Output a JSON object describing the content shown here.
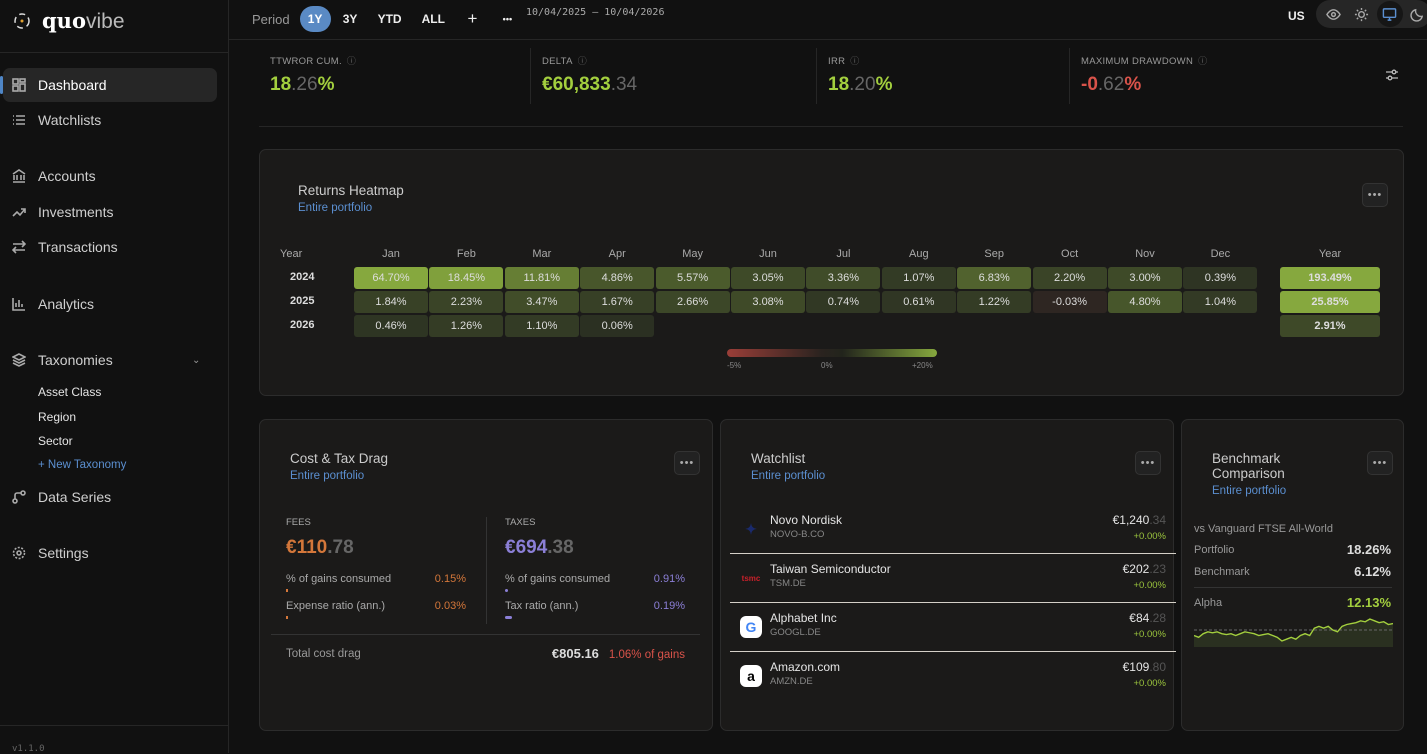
{
  "app": {
    "name_bold": "quo",
    "name_light": "vibe",
    "version": "v1.1.0"
  },
  "sidebar": {
    "items": [
      {
        "label": "Dashboard",
        "icon": "dashboard-icon"
      },
      {
        "label": "Watchlists",
        "icon": "list-icon"
      },
      {
        "label": "Accounts",
        "icon": "bank-icon"
      },
      {
        "label": "Investments",
        "icon": "trend-icon"
      },
      {
        "label": "Transactions",
        "icon": "arrows-icon"
      },
      {
        "label": "Analytics",
        "icon": "bar-chart-icon"
      },
      {
        "label": "Taxonomies",
        "icon": "layers-icon"
      },
      {
        "label": "Data Series",
        "icon": "series-icon"
      },
      {
        "label": "Settings",
        "icon": "gear-icon"
      }
    ],
    "taxonomies": [
      "Asset Class",
      "Region",
      "Sector"
    ],
    "new_taxonomy": "+ New Taxonomy"
  },
  "topbar": {
    "period_label": "Period",
    "periods": [
      "1Y",
      "3Y",
      "YTD",
      "ALL"
    ],
    "active_period": "1Y",
    "add": "+",
    "more": "•••",
    "date_range": "10/04/2025 – 10/04/2026",
    "locale": "US"
  },
  "kpis": [
    {
      "label": "TTWROR CUM.",
      "main": "18",
      "frac": ".26",
      "suffix": "%",
      "color": "#a3cf3e"
    },
    {
      "label": "DELTA",
      "main": "€60,833",
      "frac": ".34",
      "suffix": "",
      "color": "#a3cf3e"
    },
    {
      "label": "IRR",
      "main": "18",
      "frac": ".20",
      "suffix": "%",
      "color": "#a3cf3e"
    },
    {
      "label": "MAXIMUM DRAWDOWN",
      "main": "-0",
      "frac": ".62",
      "suffix": "%",
      "color": "#d9534a"
    }
  ],
  "heatmap": {
    "title": "Returns Heatmap",
    "subtitle": "Entire portfolio",
    "year_header": "Year",
    "months": [
      "Jan",
      "Feb",
      "Mar",
      "Apr",
      "May",
      "Jun",
      "Jul",
      "Aug",
      "Sep",
      "Oct",
      "Nov",
      "Dec"
    ],
    "rows": [
      {
        "year": "2024",
        "values": [
          64.7,
          18.45,
          11.81,
          4.86,
          5.57,
          3.05,
          3.36,
          1.07,
          6.83,
          2.2,
          3.0,
          0.39
        ],
        "total": 193.49
      },
      {
        "year": "2025",
        "values": [
          1.84,
          2.23,
          3.47,
          1.67,
          2.66,
          3.08,
          0.74,
          0.61,
          1.22,
          -0.03,
          4.8,
          1.04
        ],
        "total": 25.85
      },
      {
        "year": "2026",
        "values": [
          0.46,
          1.26,
          1.1,
          0.06,
          null,
          null,
          null,
          null,
          null,
          null,
          null,
          null
        ],
        "total": 2.91
      }
    ],
    "legend": [
      "-5%",
      "0%",
      "+20%"
    ]
  },
  "cost": {
    "title": "Cost & Tax Drag",
    "subtitle": "Entire portfolio",
    "fees": {
      "label": "FEES",
      "main": "€110",
      "frac": ".78",
      "gains_label": "% of gains consumed",
      "gains": "0.15%",
      "ratio_label": "Expense ratio (ann.)",
      "ratio": "0.03%",
      "gains_fill": 0.15,
      "ratio_fill": 0.03
    },
    "taxes": {
      "label": "TAXES",
      "main": "€694",
      "frac": ".38",
      "gains_label": "% of gains consumed",
      "gains": "0.91%",
      "ratio_label": "Tax ratio (ann.)",
      "ratio": "0.19%",
      "gains_fill": 0.91,
      "ratio_fill": 0.19
    },
    "total_label": "Total cost drag",
    "total": "€805.16",
    "total_pct": "1.06% of gains"
  },
  "watchlist": {
    "title": "Watchlist",
    "subtitle": "Entire portfolio",
    "items": [
      {
        "name": "Novo Nordisk",
        "ticker": "NOVO-B.CO",
        "main": "€1,240",
        "frac": ".34",
        "change": "+0.00%",
        "logo": "novo"
      },
      {
        "name": "Taiwan Semiconductor",
        "ticker": "TSM.DE",
        "main": "€202",
        "frac": ".23",
        "change": "+0.00%",
        "logo": "tsmc"
      },
      {
        "name": "Alphabet Inc",
        "ticker": "GOOGL.DE",
        "main": "€84",
        "frac": ".28",
        "change": "+0.00%",
        "logo": "G"
      },
      {
        "name": "Amazon.com",
        "ticker": "AMZN.DE",
        "main": "€109",
        "frac": ".80",
        "change": "+0.00%",
        "logo": "a"
      }
    ]
  },
  "benchmark": {
    "title": "Benchmark Comparison",
    "subtitle": "Entire portfolio",
    "vs": "vs Vanguard FTSE All-World",
    "portfolio_label": "Portfolio",
    "portfolio": "18.26%",
    "benchmark_label": "Benchmark",
    "benchmark": "6.12%",
    "alpha_label": "Alpha",
    "alpha": "12.13%",
    "sparkline": [
      3,
      2,
      4,
      5,
      4.5,
      5,
      4,
      3.5,
      4,
      3,
      4,
      5,
      4.5,
      4,
      3,
      3.5,
      4,
      3,
      2,
      0,
      1,
      2,
      1,
      3,
      4,
      3,
      7,
      8,
      7,
      8,
      6,
      5,
      8,
      9,
      9.5,
      10,
      11,
      10.5,
      12,
      11,
      10,
      10.5,
      9,
      9.5
    ]
  }
}
